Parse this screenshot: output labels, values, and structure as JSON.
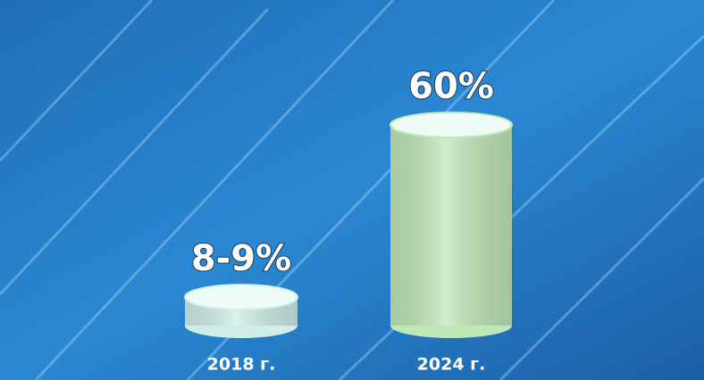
{
  "chart_data": {
    "type": "cylinder",
    "categories": [
      "2018 г.",
      "2024 г."
    ],
    "values": [
      8.5,
      60
    ],
    "value_labels": [
      "8-9%",
      "60%"
    ],
    "colors": [
      "#cfeeea",
      "#bfe8b8"
    ]
  }
}
